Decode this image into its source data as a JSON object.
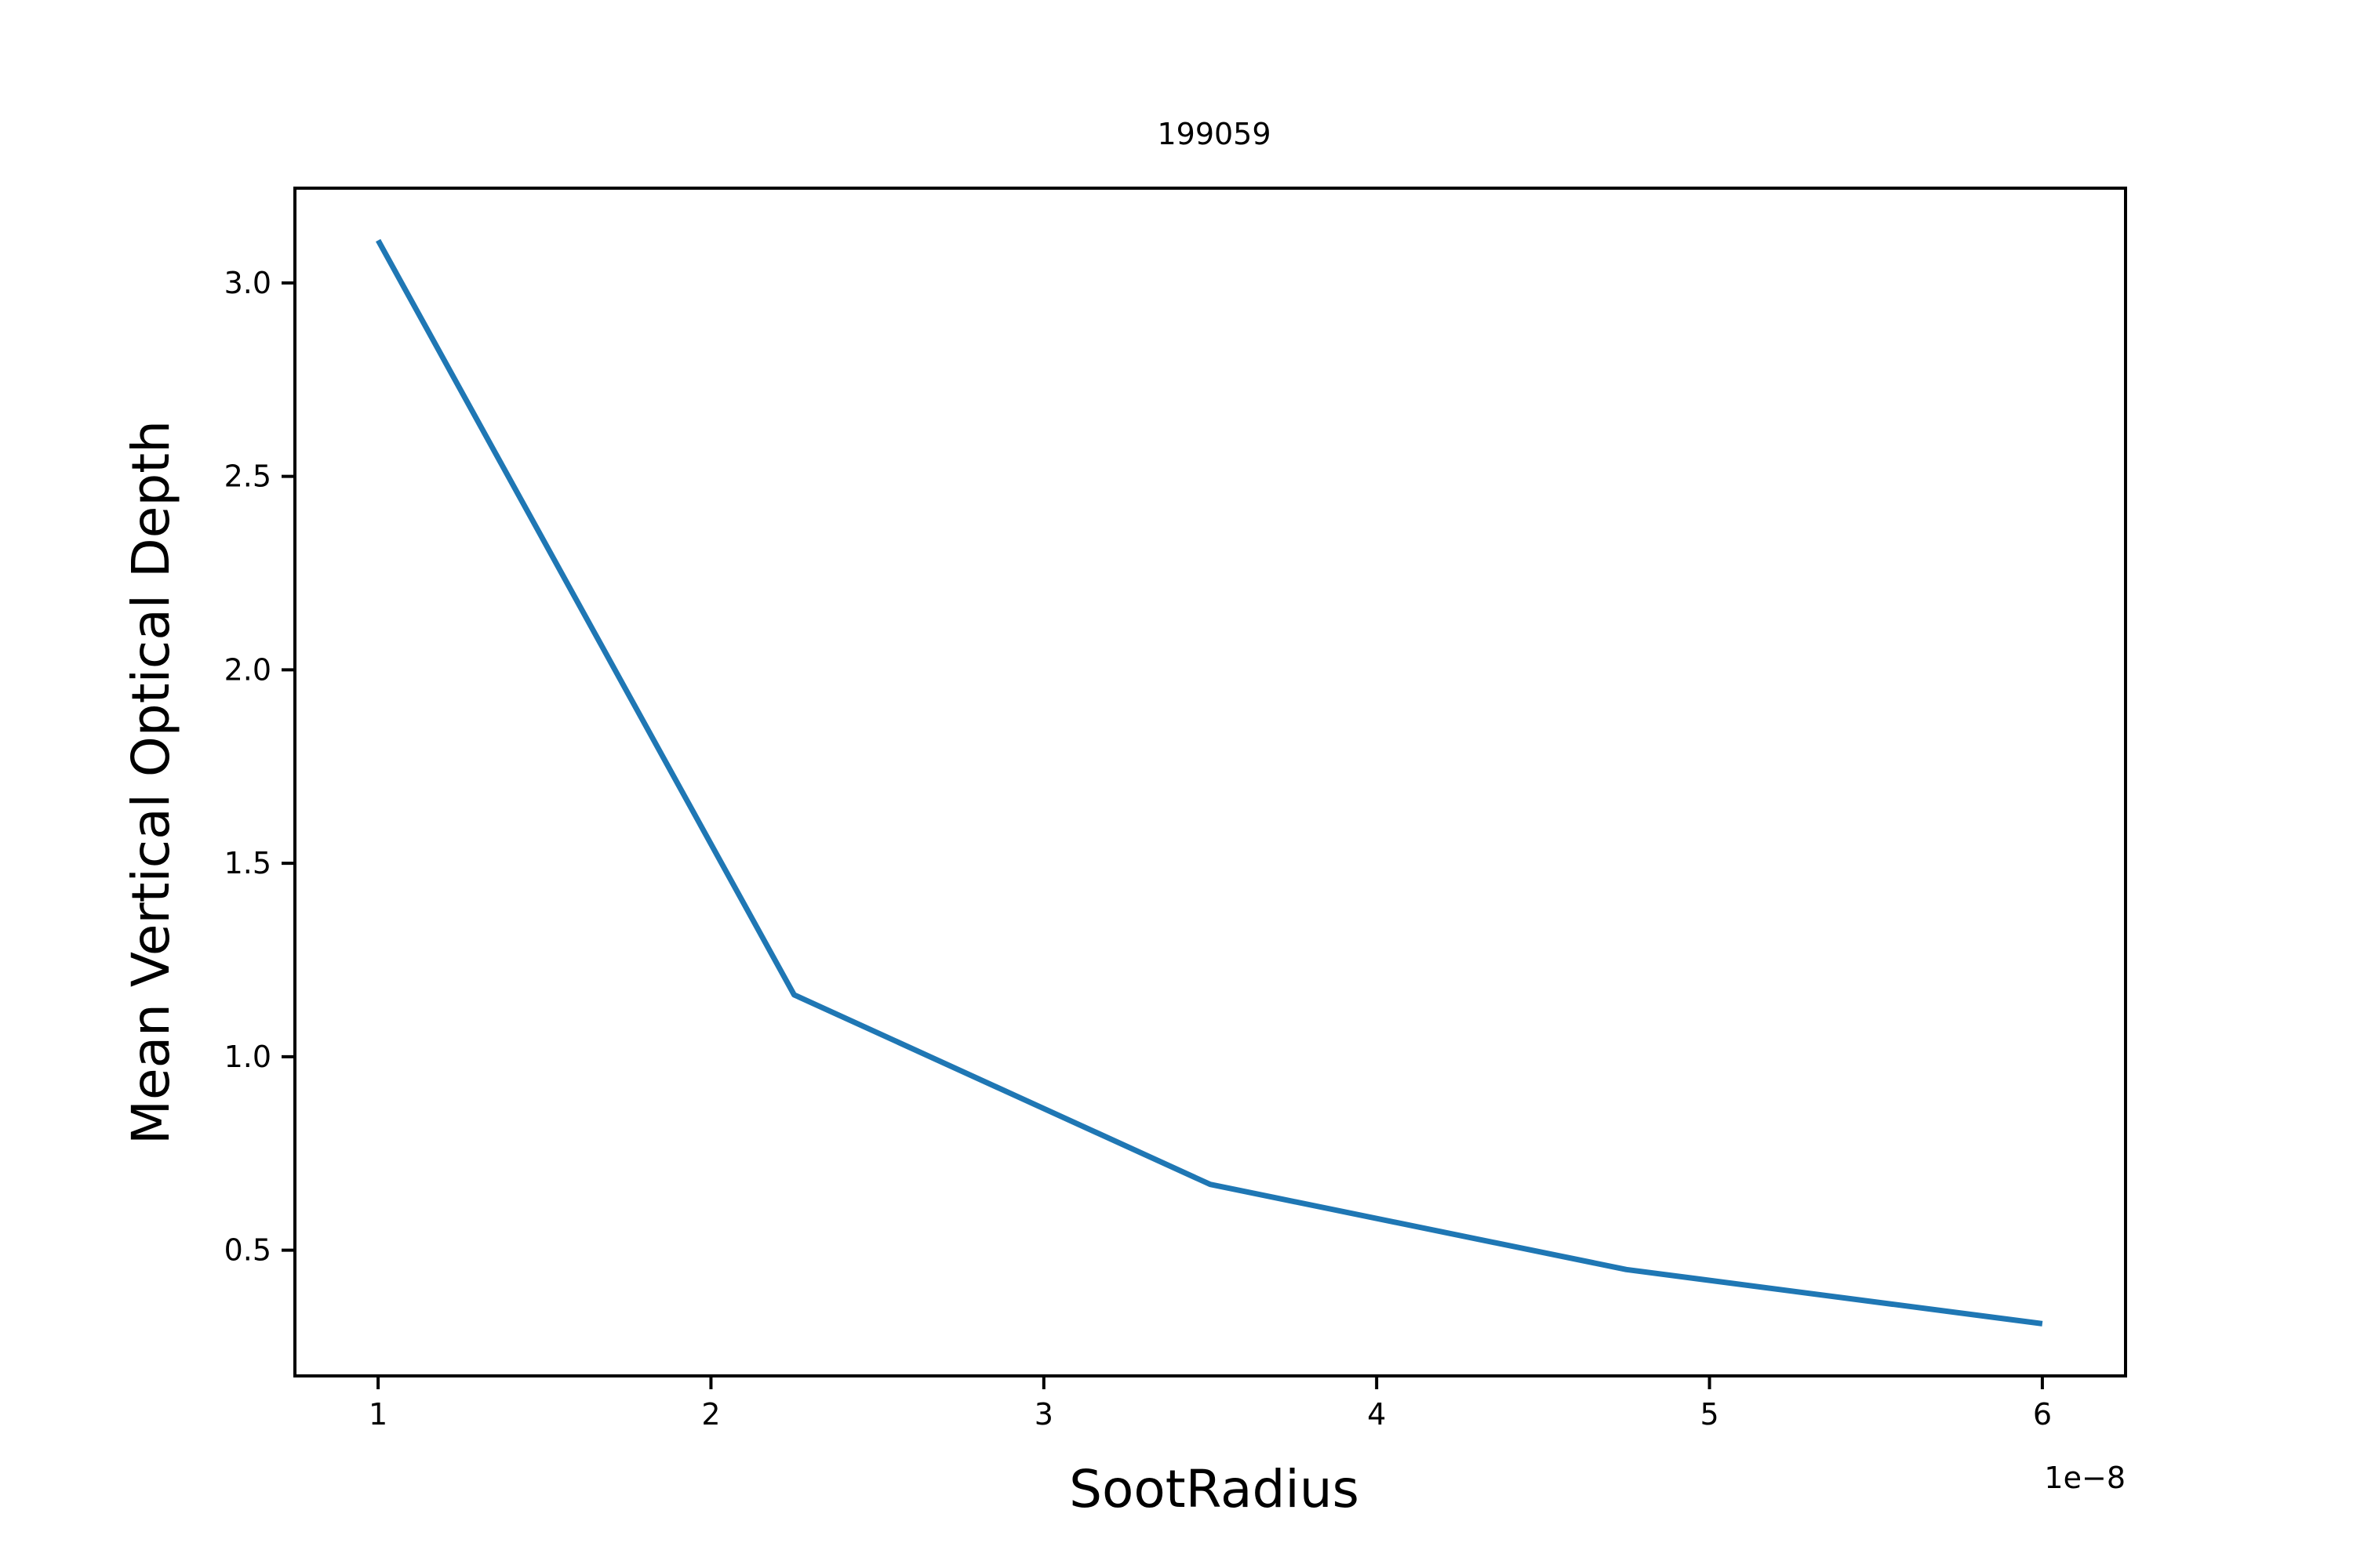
{
  "chart_data": {
    "type": "line",
    "title": "199059",
    "xlabel": "SootRadius",
    "ylabel": "Mean Vertical Optical Depth",
    "x_offset_label": "1e−8",
    "xlim": [
      7.5e-09,
      6.25e-08
    ],
    "ylim": [
      0.175,
      3.245
    ],
    "x_ticks": [
      1e-08,
      2e-08,
      3e-08,
      4e-08,
      5e-08,
      6e-08
    ],
    "x_tick_labels": [
      "1",
      "2",
      "3",
      "4",
      "5",
      "6"
    ],
    "y_ticks": [
      0.5,
      1.0,
      1.5,
      2.0,
      2.5,
      3.0
    ],
    "y_tick_labels": [
      "0.5",
      "1.0",
      "1.5",
      "2.0",
      "2.5",
      "3.0"
    ],
    "grid": false,
    "series": [
      {
        "color": "#1f77b4",
        "x": [
          1e-08,
          2.25e-08,
          3.5e-08,
          4.75e-08,
          6e-08
        ],
        "y": [
          3.11,
          1.16,
          0.67,
          0.45,
          0.31
        ]
      }
    ]
  }
}
